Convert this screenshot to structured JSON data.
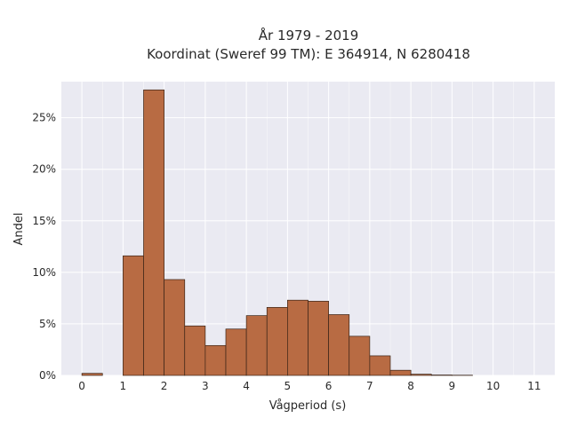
{
  "chart_data": {
    "type": "bar",
    "title": [
      "År 1979 - 2019",
      "Koordinat (Sweref 99 TM): E 364914, N 6280418"
    ],
    "xlabel": "Vågperiod (s)",
    "ylabel": "Andel",
    "xlim": [
      -0.5,
      11.5
    ],
    "ylim": [
      0,
      0.285
    ],
    "xticks": [
      0,
      1,
      2,
      3,
      4,
      5,
      6,
      7,
      8,
      9,
      10,
      11
    ],
    "yticks": [
      0,
      0.05,
      0.1,
      0.15,
      0.2,
      0.25
    ],
    "ytick_labels": [
      "0%",
      "5%",
      "10%",
      "15%",
      "20%",
      "25%"
    ],
    "grid": true,
    "bin_width": 0.5,
    "bars": [
      {
        "x0": 0.0,
        "value": 0.002
      },
      {
        "x0": 1.0,
        "value": 0.116
      },
      {
        "x0": 1.5,
        "value": 0.277
      },
      {
        "x0": 2.0,
        "value": 0.093
      },
      {
        "x0": 2.5,
        "value": 0.048
      },
      {
        "x0": 3.0,
        "value": 0.029
      },
      {
        "x0": 3.5,
        "value": 0.045
      },
      {
        "x0": 4.0,
        "value": 0.058
      },
      {
        "x0": 4.5,
        "value": 0.066
      },
      {
        "x0": 5.0,
        "value": 0.073
      },
      {
        "x0": 5.5,
        "value": 0.072
      },
      {
        "x0": 6.0,
        "value": 0.059
      },
      {
        "x0": 6.5,
        "value": 0.038
      },
      {
        "x0": 7.0,
        "value": 0.019
      },
      {
        "x0": 7.5,
        "value": 0.005
      },
      {
        "x0": 8.0,
        "value": 0.0012
      },
      {
        "x0": 8.5,
        "value": 0.0004
      },
      {
        "x0": 9.0,
        "value": 0.0002
      }
    ],
    "colors": {
      "bar_fill": "#b86b43",
      "bar_edge": "#3a2418",
      "plot_bg": "#eaeaf2",
      "grid": "#ffffff"
    }
  }
}
